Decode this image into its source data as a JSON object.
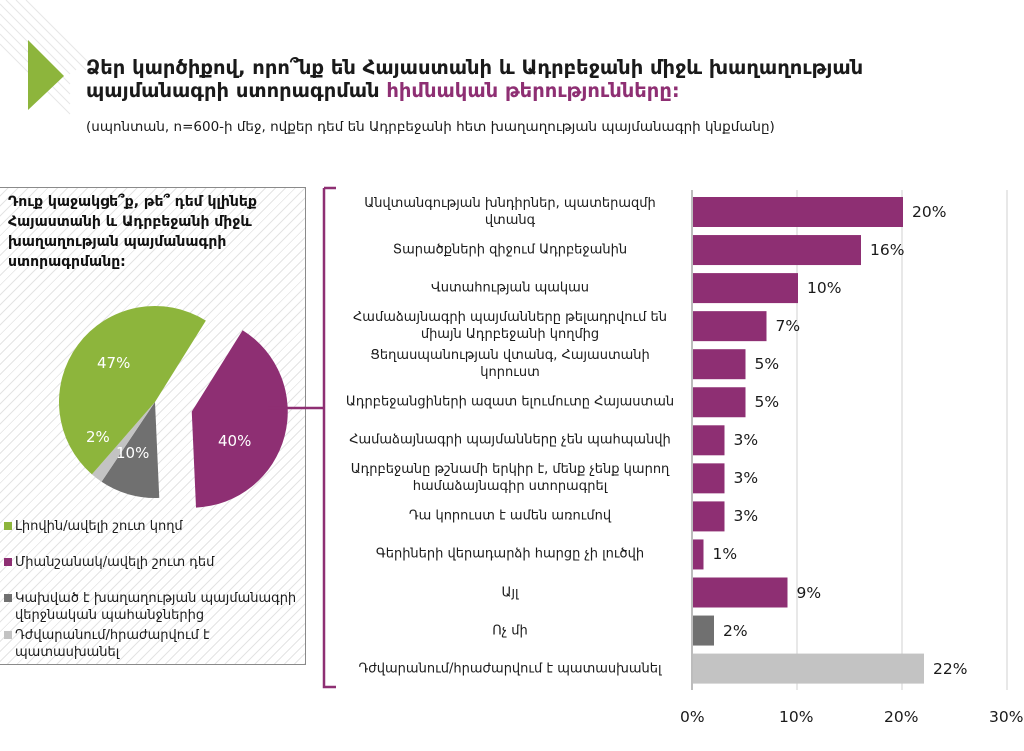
{
  "title": {
    "line1": "Ձեր կարծիքով, որո՞նք են Հայաստանի և Ադրբեջանի միջև խաղաղության",
    "line2_plain": "պայմանագրի ստորագրման ",
    "line2_highlight": "հիմնական թերությունները:"
  },
  "subtitle": "(սպոնտան, n=600-ի մեջ, ովքեր դեմ են Ադրբեջանի հետ խաղաղության պայմանագրի կնքմանը)",
  "colors": {
    "green": "#8db53c",
    "purple": "#8e2f73",
    "dark_gray": "#707070",
    "light_gray": "#c3c3c3",
    "accent": "#8e2f73"
  },
  "question": "Դուք կաջակցե՞ք, թե՞ դեմ կլինեք Հայաստանի և Ադրբեջանի միջև խաղաղության պայմանագրի ստորագրմանը:",
  "chart_data": [
    {
      "type": "pie",
      "title": "Դուք կաջակցե՞ք, թե՞ դեմ կլինեք Հայաստանի և Ադրբեջանի միջև խաղաղության պայմանագրի ստորագրմանը:",
      "slices": [
        {
          "name": "Լիովին/ավելի շուտ կողմ",
          "value": 47,
          "label": "47%",
          "color": "#8db53c"
        },
        {
          "name": "Միանշանակ/ավելի շուտ դեմ",
          "value": 40,
          "label": "40%",
          "color": "#8e2f73",
          "exploded": true
        },
        {
          "name": "Կախված է խաղաղության պայմանագրի վերջնական պահանջներից",
          "value": 10,
          "label": "10%",
          "color": "#707070"
        },
        {
          "name": "Դժվարանում/հրաժարվում է պատասխանել",
          "value": 2,
          "label": "2%",
          "color": "#c3c3c3"
        }
      ],
      "legend": "bottom-left"
    },
    {
      "type": "bar",
      "orientation": "horizontal",
      "categories": [
        "Անվտանգության խնդիրներ, պատերազմի վտանգ",
        "Տարածքների զիջում Ադրբեջանին",
        "Վստահության պակաս",
        "Համաձայնագրի պայմանները թելադրվում են միայն Ադրբեջանի կողմից",
        "Ցեղասպանության վտանգ, Հայաստանի կորուստ",
        "Ադրբեջանցիների ազատ ելումուտը Հայաստան",
        "Համաձայնագրի պայմանները չեն պահպանվի",
        "Ադրբեջանը թշնամի երկիր է, մենք չենք կարող համաձայնագիր ստորագրել",
        "Դա կորուստ է ամեն առումով",
        "Գերիների վերադարձի հարցը չի լուծվի",
        "Այլ",
        "Ոչ մի",
        "Դժվարանում/հրաժարվում է պատասխանել"
      ],
      "values": [
        20,
        16,
        10,
        7,
        5,
        5,
        3,
        3,
        3,
        1,
        9,
        2,
        22
      ],
      "value_labels": [
        "20%",
        "16%",
        "10%",
        "7%",
        "5%",
        "5%",
        "3%",
        "3%",
        "3%",
        "1%",
        "9%",
        "2%",
        "22%"
      ],
      "bar_colors": [
        "#8e2f73",
        "#8e2f73",
        "#8e2f73",
        "#8e2f73",
        "#8e2f73",
        "#8e2f73",
        "#8e2f73",
        "#8e2f73",
        "#8e2f73",
        "#8e2f73",
        "#8e2f73",
        "#707070",
        "#c3c3c3"
      ],
      "xlim": [
        0,
        30
      ],
      "xticks": [
        0,
        10,
        20,
        30
      ],
      "xtick_labels": [
        "0%",
        "10%",
        "20%",
        "30%"
      ],
      "grid": true
    }
  ]
}
